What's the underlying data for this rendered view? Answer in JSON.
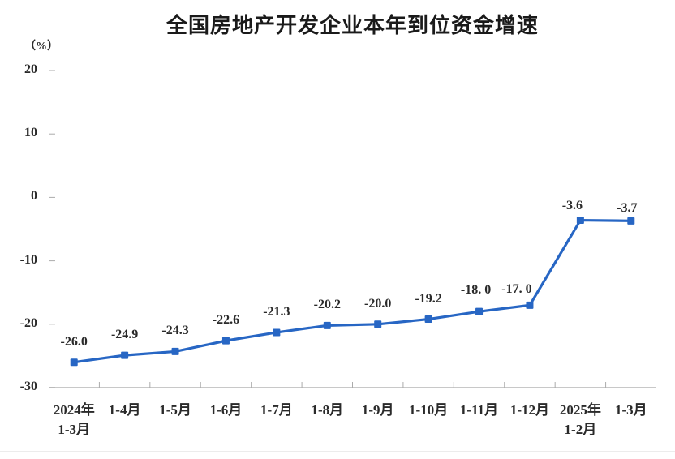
{
  "chart_data": {
    "type": "line",
    "title": "全国房地产开发企业本年到位资金增速",
    "unit_label": "（%）",
    "xlabel": "",
    "ylabel": "",
    "categories": [
      "2024年\n1-3月",
      "1-4月",
      "1-5月",
      "1-6月",
      "1-7月",
      "1-8月",
      "1-9月",
      "1-10月",
      "1-11月",
      "1-12月",
      "2025年\n1-2月",
      "1-3月"
    ],
    "values": [
      -26.0,
      -24.9,
      -24.3,
      -22.6,
      -21.3,
      -20.2,
      -20.0,
      -19.2,
      -18.0,
      -17.0,
      -3.6,
      -3.7
    ],
    "point_labels": [
      "-26.0",
      "-24.9",
      "-24.3",
      "-22.6",
      "-21.3",
      "-20.2",
      "-20.0",
      "-19.2",
      "-18. 0",
      "-17. 0",
      "-3.6",
      "-3.7"
    ],
    "y_ticks": [
      20,
      10,
      0,
      -10,
      -20,
      -30
    ],
    "ylim": [
      -30,
      20
    ],
    "grid": false,
    "legend": null,
    "line_color": "#2766C4",
    "marker": "square",
    "axis_color": "#c8c8c8",
    "tick_color": "#ababab"
  }
}
